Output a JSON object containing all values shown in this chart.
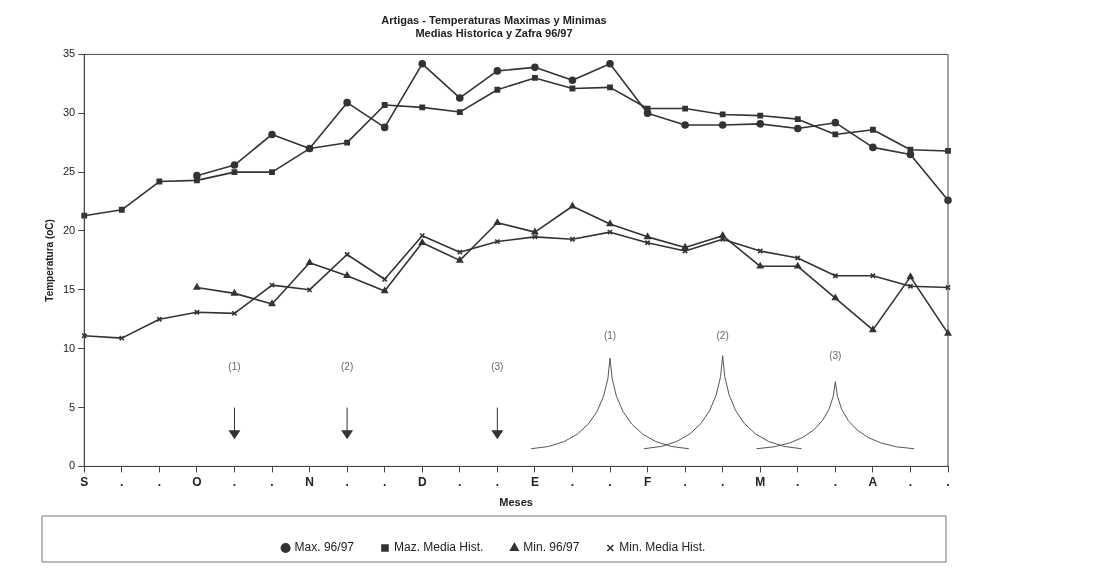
{
  "chart_data": {
    "type": "line",
    "title": "Artigas - Temperaturas Maximas y Minimas",
    "subtitle": "Medias Historica y Zafra 96/97",
    "xlabel": "Meses",
    "ylabel": "Temperatura (oC)",
    "categories": [
      "S",
      ".",
      ".",
      "O",
      ".",
      ".",
      "N",
      ".",
      ".",
      "D",
      ".",
      ".",
      "E",
      ".",
      ".",
      "F",
      ".",
      ".",
      "M",
      ".",
      ".",
      "A",
      ".",
      "."
    ],
    "series": [
      {
        "name": "Max. 96/97",
        "color": "#333333",
        "marker": "circle",
        "values": [
          null,
          null,
          null,
          24.7,
          25.6,
          28.2,
          27.0,
          30.9,
          28.8,
          34.2,
          31.3,
          33.6,
          33.9,
          32.8,
          34.2,
          30.0,
          29.0,
          29.0,
          29.1,
          28.7,
          29.2,
          27.1,
          26.5,
          22.6
        ]
      },
      {
        "name": "Maz. Media Hist.",
        "color": "#333333",
        "marker": "square",
        "values": [
          21.3,
          21.8,
          24.2,
          24.3,
          25.0,
          25.0,
          27.0,
          27.5,
          30.7,
          30.5,
          30.1,
          32.0,
          33.0,
          32.1,
          32.2,
          30.4,
          30.4,
          29.9,
          29.8,
          29.5,
          28.2,
          28.6,
          26.9,
          26.8
        ]
      },
      {
        "name": "Min. 96/97",
        "color": "#333333",
        "marker": "triangle",
        "values": [
          null,
          null,
          null,
          15.2,
          14.7,
          13.8,
          17.3,
          16.2,
          14.9,
          19.0,
          17.5,
          20.7,
          19.9,
          22.1,
          20.6,
          19.5,
          18.6,
          19.6,
          17.0,
          17.0,
          14.3,
          11.6,
          16.1,
          11.3
        ]
      },
      {
        "name": "Min. Media Hist.",
        "color": "#333333",
        "marker": "cross",
        "values": [
          11.1,
          10.9,
          12.5,
          13.1,
          13.0,
          15.4,
          15.0,
          18.0,
          15.9,
          19.6,
          18.2,
          19.1,
          19.5,
          19.3,
          19.9,
          19.0,
          18.3,
          19.3,
          18.3,
          17.7,
          16.2,
          16.2,
          15.3,
          15.2
        ]
      }
    ],
    "ylim": [
      0,
      35
    ],
    "yticks": [
      0,
      5,
      10,
      15,
      20,
      25,
      30,
      35
    ],
    "grid": false,
    "legend": "bottom",
    "line_style": "solid",
    "annotations": [
      "(1)",
      "(2)",
      "(3)",
      "(1)",
      "(2)",
      "(3)"
    ]
  }
}
